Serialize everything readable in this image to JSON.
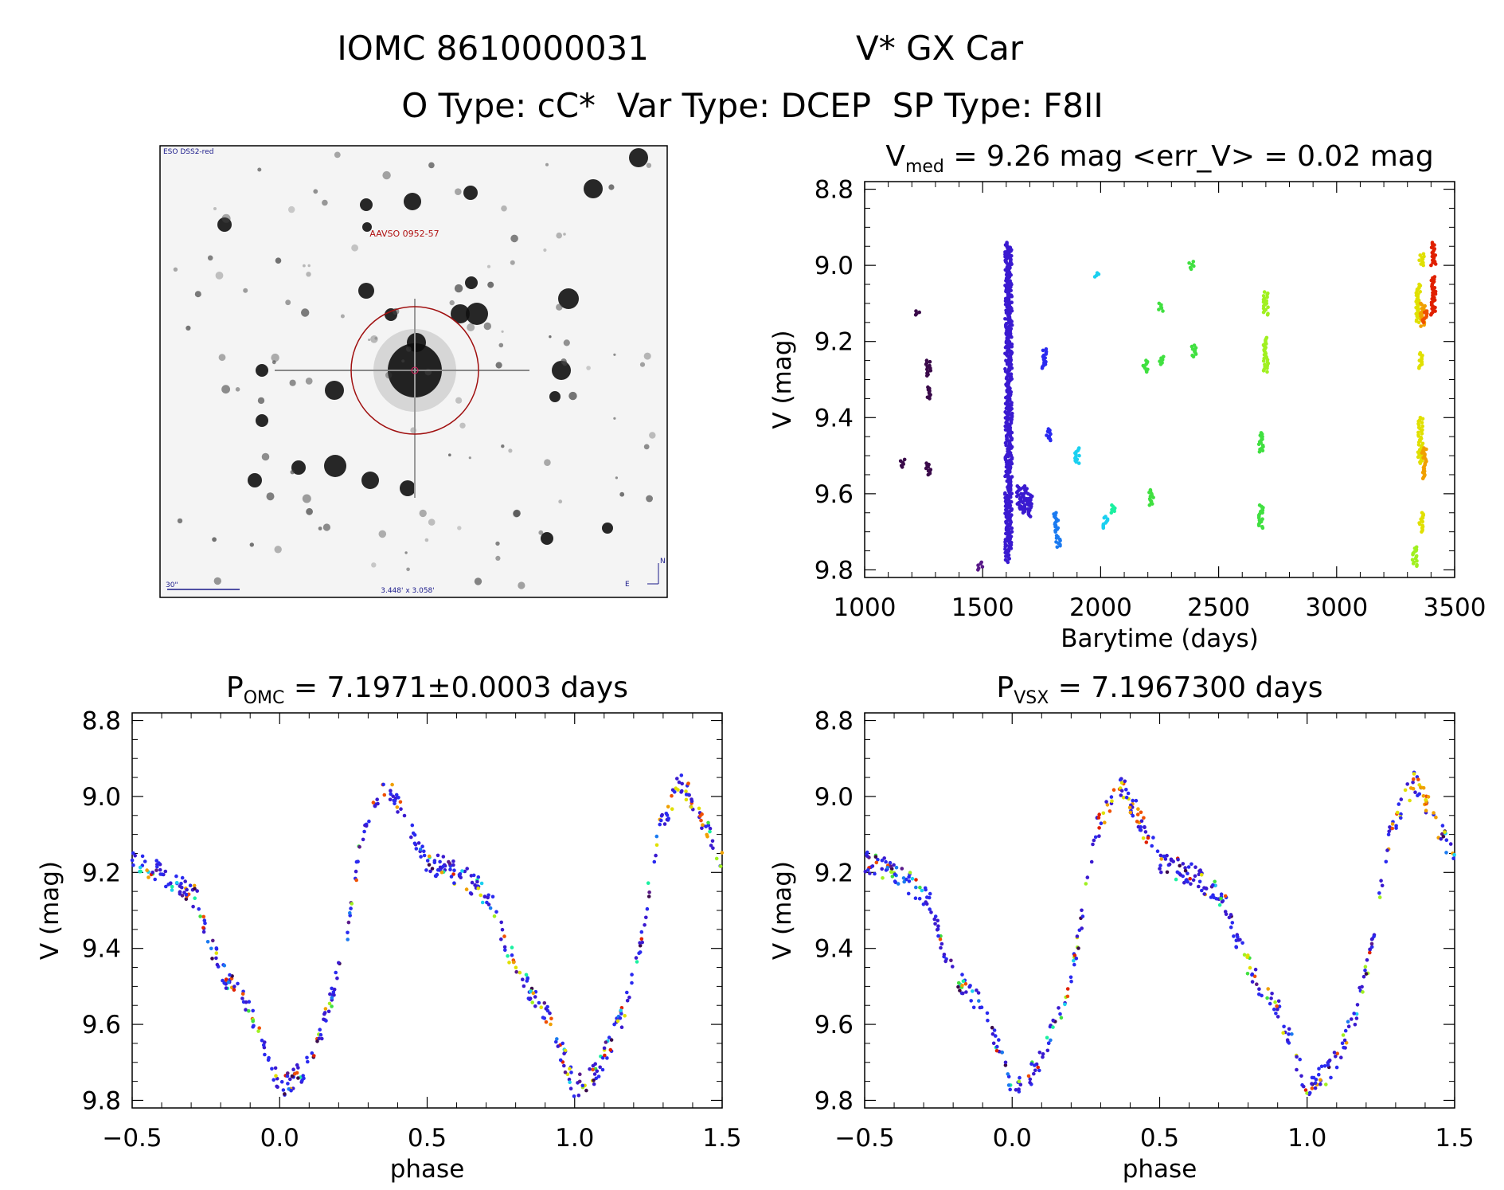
{
  "header": {
    "line1_id": "IOMC 8610000031",
    "line1_name": "V* GX Car",
    "line2": "O Type: cC*  Var Type: DCEP  SP Type: F8II"
  },
  "finder": {
    "survey_label": "ESO DSS2-red",
    "target_label": "AAVSO 0952-57",
    "scale_label": "30\"",
    "fov_label": "3.448' x 3.058'",
    "compass_n": "N",
    "compass_e": "E"
  },
  "colors": {
    "marker_sequence": [
      "#3a0a4a",
      "#5a1a8a",
      "#3a1ad0",
      "#2a2af0",
      "#1a7af0",
      "#1ad0f0",
      "#1af0a0",
      "#40e040",
      "#a0f020",
      "#e0e000",
      "#f0a000",
      "#f05000",
      "#e02000"
    ],
    "finder_circle": "#a01010",
    "finder_text": "#b01010",
    "finder_blue": "#1a1a8a"
  },
  "chart_data": [
    {
      "type": "scatter",
      "id": "lightcurve",
      "title": "V",
      "title_sub": "med",
      "title_rest": " = 9.26 mag <err_V> = 0.02 mag",
      "xlabel": "Barytime (days)",
      "ylabel": "V (mag)",
      "xlim": [
        1000,
        3500
      ],
      "ylim": [
        9.82,
        8.78
      ],
      "x_ticks": [
        "1000",
        "1500",
        "2000",
        "2500",
        "3000",
        "3500"
      ],
      "y_ticks": [
        "8.8",
        "9.0",
        "9.2",
        "9.4",
        "9.6",
        "9.8"
      ],
      "clusters": [
        {
          "x": 1160,
          "y": [
            9.51,
            9.53
          ],
          "c": 0
        },
        {
          "x": 1225,
          "y": [
            9.12,
            9.13
          ],
          "c": 0
        },
        {
          "x": 1270,
          "y": [
            9.25,
            9.29
          ],
          "c": 0
        },
        {
          "x": 1270,
          "y": [
            9.32,
            9.35
          ],
          "c": 0
        },
        {
          "x": 1270,
          "y": [
            9.52,
            9.55
          ],
          "c": 0
        },
        {
          "x": 1490,
          "y": [
            9.78,
            9.8
          ],
          "c": 1
        },
        {
          "x": 1605,
          "y": [
            8.94,
            9.78
          ],
          "c": 2
        },
        {
          "x": 1615,
          "y": [
            8.95,
            9.75
          ],
          "c": 2
        },
        {
          "x": 1655,
          "y": [
            9.58,
            9.64
          ],
          "c": 2
        },
        {
          "x": 1680,
          "y": [
            9.58,
            9.65
          ],
          "c": 2
        },
        {
          "x": 1700,
          "y": [
            9.6,
            9.66
          ],
          "c": 2
        },
        {
          "x": 1760,
          "y": [
            9.22,
            9.27
          ],
          "c": 3
        },
        {
          "x": 1780,
          "y": [
            9.43,
            9.46
          ],
          "c": 3
        },
        {
          "x": 1810,
          "y": [
            9.65,
            9.7
          ],
          "c": 4
        },
        {
          "x": 1820,
          "y": [
            9.71,
            9.74
          ],
          "c": 4
        },
        {
          "x": 1900,
          "y": [
            9.48,
            9.52
          ],
          "c": 5
        },
        {
          "x": 1985,
          "y": [
            9.02,
            9.03
          ],
          "c": 5
        },
        {
          "x": 2020,
          "y": [
            9.66,
            9.69
          ],
          "c": 5
        },
        {
          "x": 2055,
          "y": [
            9.63,
            9.65
          ],
          "c": 6
        },
        {
          "x": 2190,
          "y": [
            9.25,
            9.28
          ],
          "c": 7
        },
        {
          "x": 2215,
          "y": [
            9.59,
            9.63
          ],
          "c": 7
        },
        {
          "x": 2255,
          "y": [
            9.1,
            9.12
          ],
          "c": 7
        },
        {
          "x": 2260,
          "y": [
            9.24,
            9.26
          ],
          "c": 7
        },
        {
          "x": 2385,
          "y": [
            8.99,
            9.01
          ],
          "c": 7
        },
        {
          "x": 2395,
          "y": [
            9.21,
            9.24
          ],
          "c": 7
        },
        {
          "x": 2680,
          "y": [
            9.44,
            9.49
          ],
          "c": 7
        },
        {
          "x": 2680,
          "y": [
            9.63,
            9.69
          ],
          "c": 7
        },
        {
          "x": 2700,
          "y": [
            9.07,
            9.13
          ],
          "c": 8
        },
        {
          "x": 2700,
          "y": [
            9.19,
            9.28
          ],
          "c": 8
        },
        {
          "x": 3330,
          "y": [
            9.74,
            9.79
          ],
          "c": 8
        },
        {
          "x": 3345,
          "y": [
            9.05,
            9.15
          ],
          "c": 9
        },
        {
          "x": 3355,
          "y": [
            9.4,
            9.52
          ],
          "c": 9
        },
        {
          "x": 3360,
          "y": [
            9.65,
            9.7
          ],
          "c": 9
        },
        {
          "x": 3355,
          "y": [
            9.23,
            9.27
          ],
          "c": 9
        },
        {
          "x": 3360,
          "y": [
            8.97,
            9.0
          ],
          "c": 9
        },
        {
          "x": 3365,
          "y": [
            9.1,
            9.16
          ],
          "c": 10
        },
        {
          "x": 3370,
          "y": [
            9.48,
            9.56
          ],
          "c": 10
        },
        {
          "x": 3375,
          "y": [
            9.12,
            9.15
          ],
          "c": 11
        },
        {
          "x": 3410,
          "y": [
            8.94,
            9.0
          ],
          "c": 12
        },
        {
          "x": 3410,
          "y": [
            9.03,
            9.13
          ],
          "c": 12
        }
      ]
    },
    {
      "type": "scatter",
      "id": "phase_omc",
      "title": "P",
      "title_sub": "OMC",
      "title_rest": " = 7.1971±0.0003 days",
      "xlabel": "phase",
      "ylabel": "V (mag)",
      "xlim": [
        -0.5,
        1.5
      ],
      "ylim": [
        9.82,
        8.78
      ],
      "x_ticks": [
        "−0.5",
        "0.0",
        "0.5",
        "1.0",
        "1.5"
      ],
      "y_ticks": [
        "8.8",
        "9.0",
        "9.2",
        "9.4",
        "9.6",
        "9.8"
      ],
      "curve": [
        [
          0.0,
          9.77
        ],
        [
          0.08,
          9.72
        ],
        [
          0.16,
          9.58
        ],
        [
          0.22,
          9.4
        ],
        [
          0.28,
          9.1
        ],
        [
          0.36,
          8.96
        ],
        [
          0.42,
          9.04
        ],
        [
          0.5,
          9.17
        ],
        [
          0.62,
          9.21
        ],
        [
          0.72,
          9.27
        ],
        [
          0.76,
          9.38
        ],
        [
          0.82,
          9.48
        ],
        [
          0.9,
          9.56
        ],
        [
          0.96,
          9.68
        ],
        [
          1.0,
          9.77
        ]
      ]
    },
    {
      "type": "scatter",
      "id": "phase_vsx",
      "title": "P",
      "title_sub": "VSX",
      "title_rest": " = 7.1967300 days",
      "xlabel": "phase",
      "ylabel": "V (mag)",
      "xlim": [
        -0.5,
        1.5
      ],
      "ylim": [
        9.82,
        8.78
      ],
      "x_ticks": [
        "−0.5",
        "0.0",
        "0.5",
        "1.0",
        "1.5"
      ],
      "y_ticks": [
        "8.8",
        "9.0",
        "9.2",
        "9.4",
        "9.6",
        "9.8"
      ],
      "curve": [
        [
          0.0,
          9.77
        ],
        [
          0.08,
          9.72
        ],
        [
          0.16,
          9.58
        ],
        [
          0.22,
          9.4
        ],
        [
          0.28,
          9.1
        ],
        [
          0.36,
          8.96
        ],
        [
          0.42,
          9.04
        ],
        [
          0.5,
          9.17
        ],
        [
          0.62,
          9.21
        ],
        [
          0.72,
          9.27
        ],
        [
          0.76,
          9.38
        ],
        [
          0.82,
          9.48
        ],
        [
          0.9,
          9.56
        ],
        [
          0.96,
          9.68
        ],
        [
          1.0,
          9.77
        ]
      ]
    }
  ]
}
